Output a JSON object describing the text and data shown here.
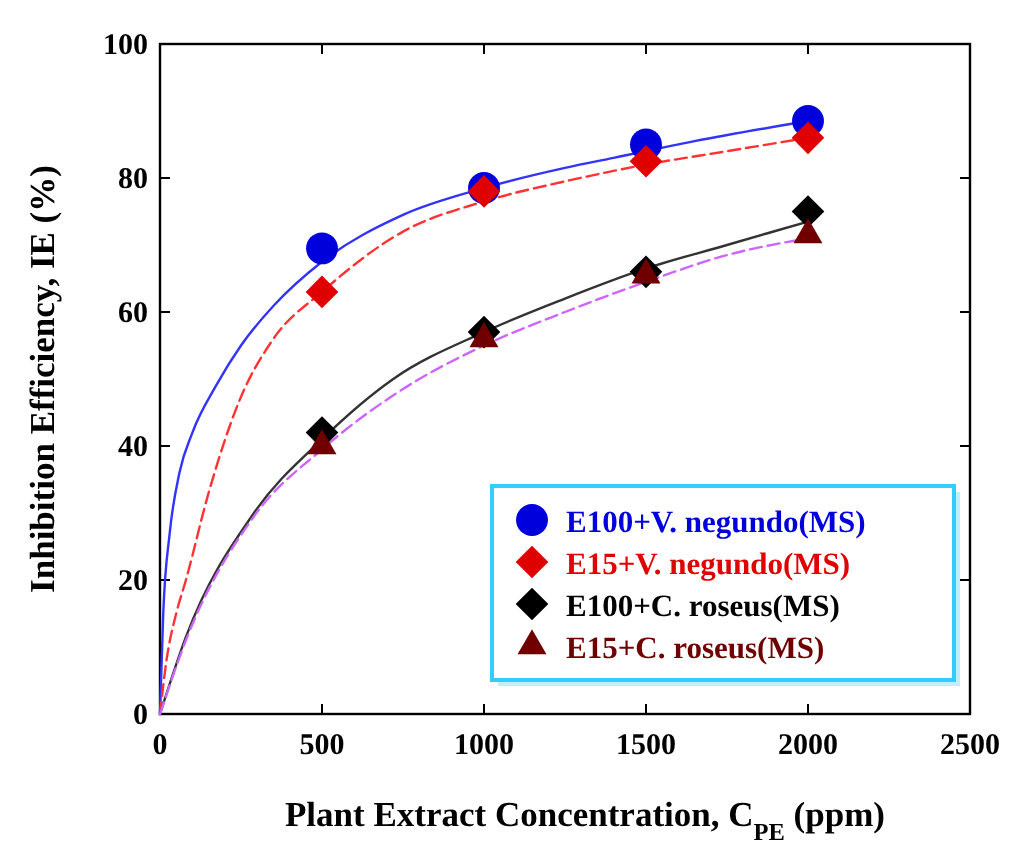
{
  "chart_data": {
    "type": "scatter",
    "xlabel": "Plant Extract Concentration, C$_{PE}$ (ppm)",
    "ylabel": "Inhibition Efficiency, IE (%)",
    "xlim": [
      0,
      2500
    ],
    "xticks": [
      0,
      500,
      1000,
      1500,
      2000,
      2500
    ],
    "ylim": [
      0,
      100
    ],
    "yticks": [
      0,
      20,
      40,
      60,
      80,
      100
    ],
    "grid": false,
    "legend": "bottom right",
    "series": [
      {
        "type": "line",
        "color": "#3333ff",
        "line_style": "solid",
        "marker": "none",
        "x": [
          0,
          10,
          30,
          60,
          100,
          173,
          250,
          352,
          500,
          750,
          1000,
          1250,
          1400,
          1650,
          2000
        ],
        "values": [
          0,
          15,
          27,
          36,
          42,
          49,
          55,
          61,
          67.5,
          74.5,
          78.5,
          81.5,
          83,
          85.5,
          88.5
        ]
      },
      {
        "type": "line",
        "color": "#ff3333",
        "line_style": "dashed",
        "marker": "none",
        "x": [
          0,
          20,
          50,
          80,
          150,
          247,
          350,
          500,
          750,
          1000,
          1250,
          1500,
          1750,
          2000
        ],
        "values": [
          0,
          8,
          15,
          20,
          33,
          47,
          56,
          63,
          72,
          76.5,
          79.5,
          82,
          84,
          86
        ]
      },
      {
        "type": "line",
        "color": "#333333",
        "line_style": "solid",
        "marker": "none",
        "x": [
          0,
          80,
          290,
          500,
          720,
          1000,
          1250,
          1500,
          1750,
          2000
        ],
        "values": [
          0,
          11.5,
          30,
          41,
          50,
          57,
          62,
          66.5,
          70,
          73.5
        ]
      },
      {
        "type": "line",
        "color": "#cc66ff",
        "line_style": "dashed",
        "marker": "none",
        "x": [
          0,
          80,
          290,
          500,
          750,
          1000,
          1250,
          1500,
          1750,
          2000
        ],
        "values": [
          0,
          11,
          29.5,
          39.5,
          48.5,
          55,
          60,
          64.5,
          68.5,
          71
        ]
      },
      {
        "name": "E100+V. negundo(MS)",
        "color": "#0000dd",
        "marker": "circle",
        "x": [
          500,
          1000,
          1500,
          2000
        ],
        "values": [
          69.5,
          78.5,
          85,
          88.5
        ]
      },
      {
        "name": "E15+V. negundo(MS)",
        "color": "#e00000",
        "marker": "diamond",
        "x": [
          500,
          1000,
          1500,
          2000
        ],
        "values": [
          63,
          78,
          82.5,
          86
        ]
      },
      {
        "name": "E100+C. roseus(MS)",
        "color": "#000000",
        "marker": "diamond",
        "x": [
          500,
          1000,
          1500,
          2000
        ],
        "values": [
          42,
          57,
          66,
          75
        ]
      },
      {
        "name": "E15+C. roseus(MS)",
        "color": "#700000",
        "marker": "triangle",
        "x": [
          500,
          1000,
          1500,
          2000
        ],
        "values": [
          40,
          56,
          65.5,
          71.5
        ]
      }
    ]
  }
}
